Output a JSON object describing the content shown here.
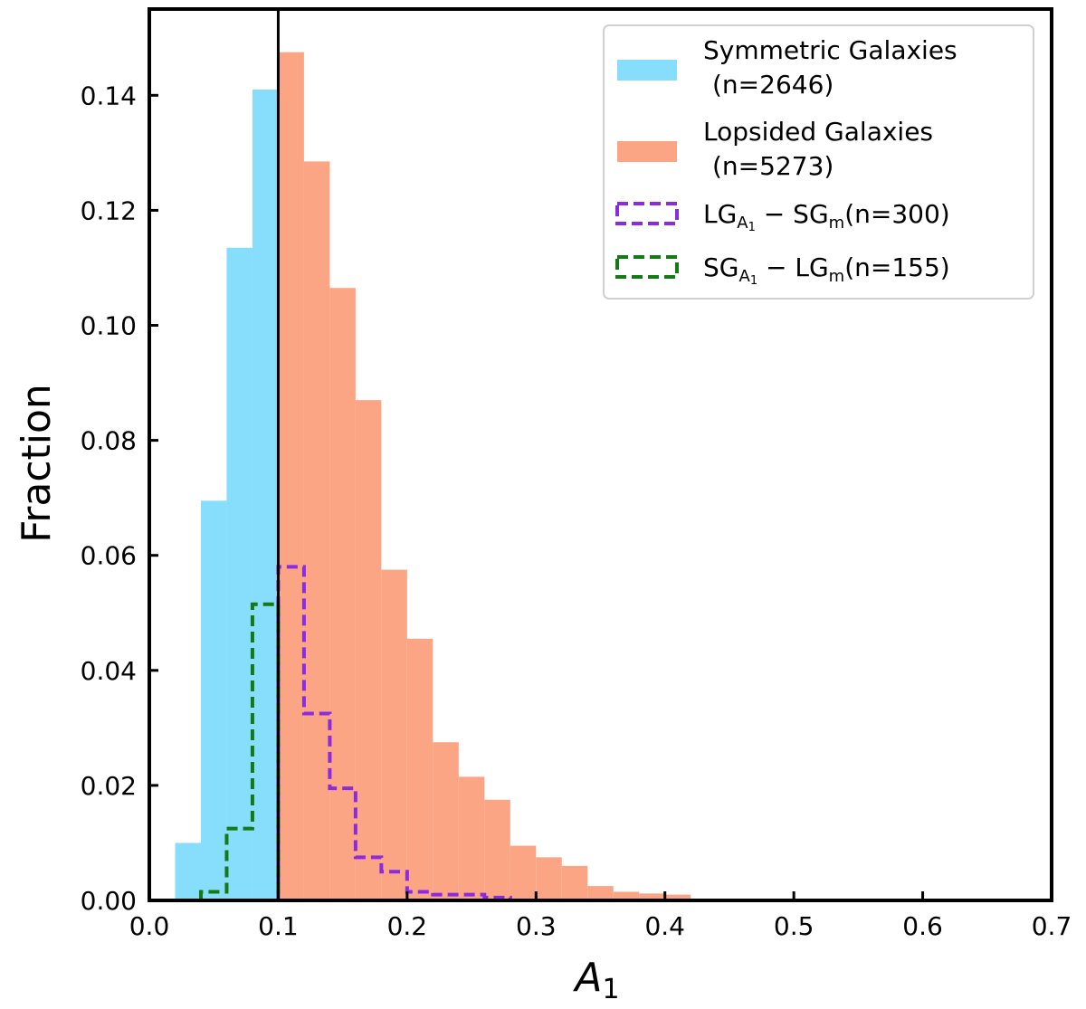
{
  "chart_data": {
    "type": "histogram",
    "xlabel": "A",
    "xlabel_sub": "1",
    "ylabel": "Fraction",
    "xlim": [
      0.0,
      0.7
    ],
    "ylim": [
      0.0,
      0.155
    ],
    "xticks": [
      "0.0",
      "0.1",
      "0.2",
      "0.3",
      "0.4",
      "0.5",
      "0.6",
      "0.7"
    ],
    "yticks": [
      "0.00",
      "0.02",
      "0.04",
      "0.06",
      "0.08",
      "0.10",
      "0.12",
      "0.14"
    ],
    "threshold_line": 0.1,
    "colors": {
      "symmetric": "#87ddfc",
      "lopsided": "#fca585",
      "lg_minus_sg": "#8a2be2",
      "sg_minus_lg": "#157a15"
    },
    "series": [
      {
        "name": "Symmetric Galaxies (n=2646)",
        "style": "filled",
        "bins": [
          {
            "x0": 0.02,
            "x1": 0.04,
            "y": 0.01
          },
          {
            "x0": 0.04,
            "x1": 0.06,
            "y": 0.0695
          },
          {
            "x0": 0.06,
            "x1": 0.08,
            "y": 0.1135
          },
          {
            "x0": 0.08,
            "x1": 0.1,
            "y": 0.141
          }
        ]
      },
      {
        "name": "Lopsided Galaxies (n=5273)",
        "style": "filled",
        "bins": [
          {
            "x0": 0.1,
            "x1": 0.12,
            "y": 0.1475
          },
          {
            "x0": 0.12,
            "x1": 0.14,
            "y": 0.1285
          },
          {
            "x0": 0.14,
            "x1": 0.16,
            "y": 0.1065
          },
          {
            "x0": 0.16,
            "x1": 0.18,
            "y": 0.087
          },
          {
            "x0": 0.18,
            "x1": 0.2,
            "y": 0.0575
          },
          {
            "x0": 0.2,
            "x1": 0.22,
            "y": 0.0455
          },
          {
            "x0": 0.22,
            "x1": 0.24,
            "y": 0.0275
          },
          {
            "x0": 0.24,
            "x1": 0.26,
            "y": 0.0215
          },
          {
            "x0": 0.26,
            "x1": 0.28,
            "y": 0.0175
          },
          {
            "x0": 0.28,
            "x1": 0.3,
            "y": 0.0095
          },
          {
            "x0": 0.3,
            "x1": 0.32,
            "y": 0.0075
          },
          {
            "x0": 0.32,
            "x1": 0.34,
            "y": 0.006
          },
          {
            "x0": 0.34,
            "x1": 0.36,
            "y": 0.0025
          },
          {
            "x0": 0.36,
            "x1": 0.38,
            "y": 0.0015
          },
          {
            "x0": 0.38,
            "x1": 0.4,
            "y": 0.0012
          },
          {
            "x0": 0.4,
            "x1": 0.42,
            "y": 0.001
          },
          {
            "x0": 0.42,
            "x1": 0.44,
            "y": 0.0002
          },
          {
            "x0": 0.44,
            "x1": 0.46,
            "y": 0.0002
          },
          {
            "x0": 0.46,
            "x1": 0.48,
            "y": 0.0002
          },
          {
            "x0": 0.48,
            "x1": 0.5,
            "y": 0.0002
          },
          {
            "x0": 0.5,
            "x1": 0.52,
            "y": 0.0002
          },
          {
            "x0": 0.52,
            "x1": 0.54,
            "y": 0.0002
          },
          {
            "x0": 0.54,
            "x1": 0.56,
            "y": 0.0002
          },
          {
            "x0": 0.56,
            "x1": 0.58,
            "y": 0.0002
          },
          {
            "x0": 0.58,
            "x1": 0.6,
            "y": 0.0003
          }
        ]
      },
      {
        "name": "LG_A1 − SG_m (n=300)",
        "style": "dashed-step",
        "edges": [
          0.1,
          0.12,
          0.14,
          0.16,
          0.18,
          0.2,
          0.22,
          0.24,
          0.26,
          0.28
        ],
        "values": [
          0.058,
          0.0325,
          0.0195,
          0.0075,
          0.005,
          0.0015,
          0.001,
          0.001,
          0.0005
        ]
      },
      {
        "name": "SG_A1 − LG_m (n=155)",
        "style": "dashed-step",
        "edges": [
          0.04,
          0.06,
          0.08,
          0.1
        ],
        "values": [
          0.0015,
          0.0125,
          0.0515
        ]
      }
    ],
    "legend": {
      "placement": "top-right",
      "entries": [
        {
          "line1": "Symmetric Galaxies",
          "line2": "(n=2646)"
        },
        {
          "line1": "Lopsided Galaxies",
          "line2": "(n=5273)"
        },
        {
          "main1": "LG",
          "sub1": "A",
          "subsub1": "1",
          "mid": " − ",
          "main2": "SG",
          "sub2": "m",
          "suffix": "(n=300)"
        },
        {
          "main1": "SG",
          "sub1": "A",
          "subsub1": "1",
          "mid": " − ",
          "main2": "LG",
          "sub2": "m",
          "suffix": "(n=155)"
        }
      ]
    }
  }
}
